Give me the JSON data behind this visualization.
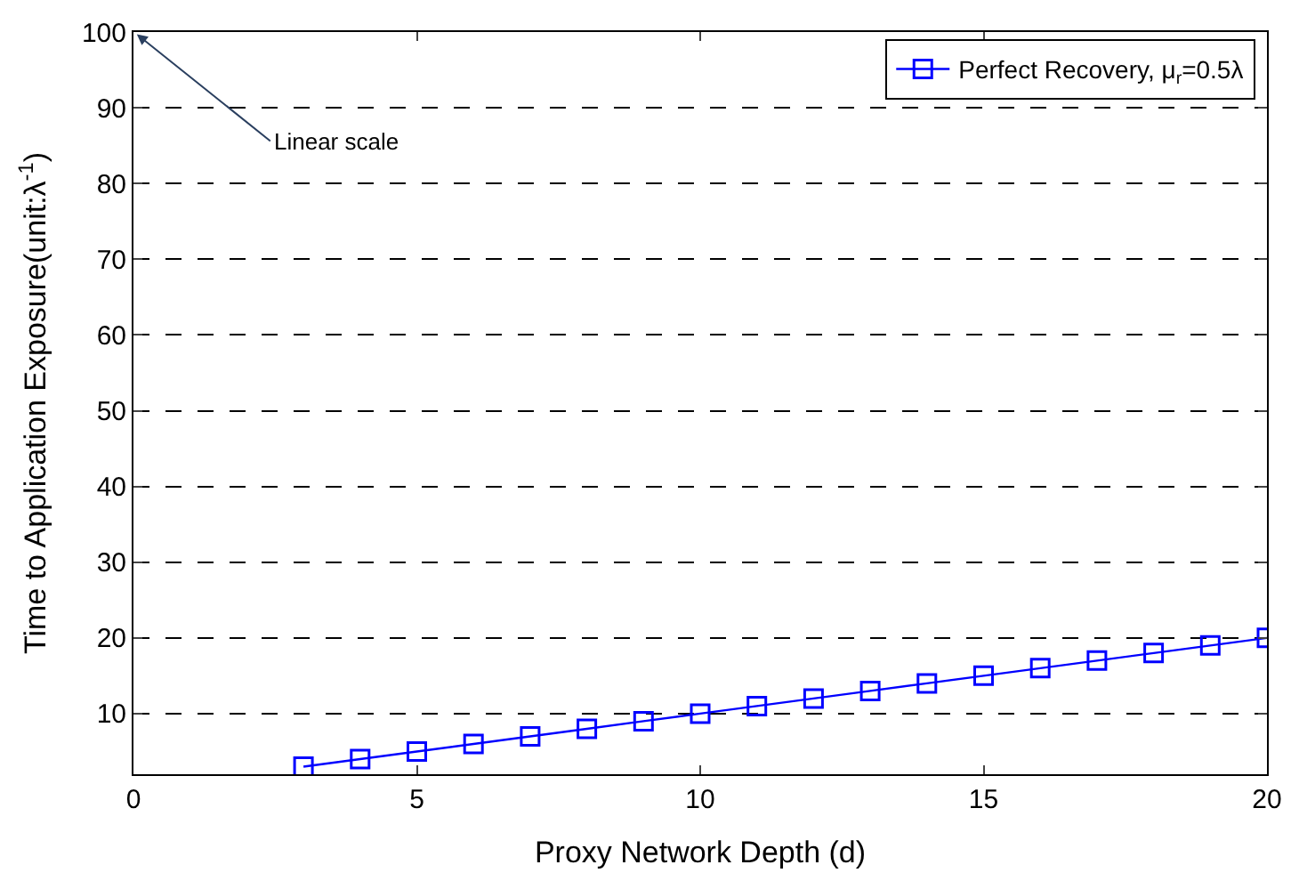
{
  "chart_data": {
    "type": "line",
    "xlabel": "Proxy Network Depth (d)",
    "ylabel": "Time to Application Exposure(unit:λ$^{-1}$)",
    "x": [
      3,
      4,
      5,
      6,
      7,
      8,
      9,
      10,
      11,
      12,
      13,
      14,
      15,
      16,
      17,
      18,
      19,
      20
    ],
    "series": [
      {
        "name": "Perfect Recovery, μ$_{r}$=0.5λ",
        "color": "#0000ff",
        "values": [
          3,
          4,
          5,
          6,
          7,
          8,
          9,
          10,
          11,
          12,
          13,
          14,
          15,
          16,
          17,
          18,
          19,
          20
        ]
      }
    ],
    "xlim": [
      0,
      20
    ],
    "xticks": [
      0,
      5,
      10,
      15,
      20
    ],
    "ylim": [
      2,
      100
    ],
    "yticks": [
      10,
      20,
      30,
      40,
      50,
      60,
      70,
      80,
      90,
      100
    ],
    "grid": "y",
    "legend": "top right",
    "marker": "square",
    "line_style": "solid",
    "annotations": [
      "Linear scale"
    ]
  }
}
